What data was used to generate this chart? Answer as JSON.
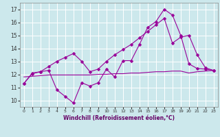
{
  "title": "",
  "xlabel": "Windchill (Refroidissement éolien,°C)",
  "bg_color": "#cce8ec",
  "grid_color": "#ffffff",
  "line_color": "#990099",
  "xlim": [
    -0.5,
    23.5
  ],
  "ylim": [
    9.5,
    17.5
  ],
  "xticks": [
    0,
    1,
    2,
    3,
    4,
    5,
    6,
    7,
    8,
    9,
    10,
    11,
    12,
    13,
    14,
    15,
    16,
    17,
    18,
    19,
    20,
    21,
    22,
    23
  ],
  "yticks": [
    10,
    11,
    12,
    13,
    14,
    15,
    16,
    17
  ],
  "hours": [
    0,
    1,
    2,
    3,
    4,
    5,
    6,
    7,
    8,
    9,
    10,
    11,
    12,
    13,
    14,
    15,
    16,
    17,
    18,
    19,
    20,
    21,
    22,
    23
  ],
  "line_zigzag": [
    11.3,
    12.1,
    12.2,
    12.3,
    10.8,
    10.3,
    9.8,
    11.35,
    11.1,
    11.35,
    12.4,
    11.8,
    13.05,
    13.05,
    14.3,
    15.6,
    16.05,
    17.0,
    16.55,
    15.0,
    12.8,
    12.45,
    12.4,
    12.3
  ],
  "line_flat": [
    11.8,
    11.85,
    11.9,
    11.95,
    11.95,
    11.95,
    11.95,
    11.95,
    11.95,
    12.0,
    12.0,
    12.05,
    12.05,
    12.1,
    12.1,
    12.15,
    12.2,
    12.2,
    12.25,
    12.25,
    12.1,
    12.2,
    12.25,
    12.3
  ],
  "line_trend": [
    11.3,
    12.05,
    12.2,
    12.6,
    13.0,
    13.3,
    13.6,
    13.0,
    12.2,
    12.4,
    13.0,
    13.5,
    13.9,
    14.3,
    14.8,
    15.3,
    15.8,
    16.3,
    14.4,
    14.85,
    15.0,
    13.5,
    12.5,
    12.3
  ],
  "markersize": 2.5,
  "linewidth": 0.8
}
